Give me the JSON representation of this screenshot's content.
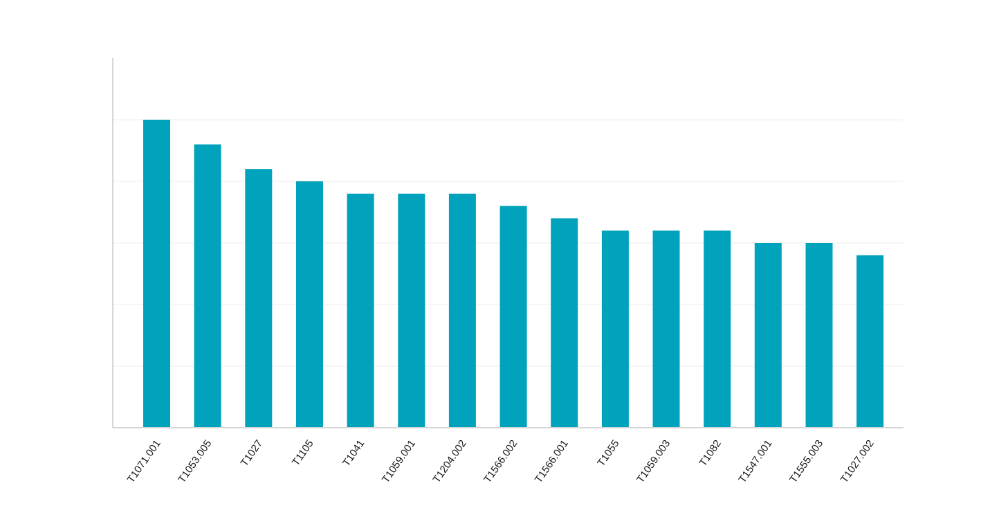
{
  "colors": {
    "bar": "#00a3bb",
    "grid": "#eeeeee",
    "axis": "#d6d6d6",
    "label": "#1a1a1a"
  },
  "chart_data": {
    "type": "bar",
    "title": "",
    "xlabel": "",
    "ylabel": "",
    "ylim": [
      0,
      30
    ],
    "grid": true,
    "y_ticks_shown": false,
    "categories": [
      "T1071.001",
      "T1053.005",
      "T1027",
      "T1105",
      "T1041",
      "T1059.001",
      "T1204.002",
      "T1566.002",
      "T1566.001",
      "T1055",
      "T1059.003",
      "T1082",
      "T1547.001",
      "T1555.003",
      "T1027.002"
    ],
    "values": [
      25,
      23,
      21,
      20,
      19,
      19,
      19,
      18,
      17,
      16,
      16,
      16,
      15,
      15,
      14
    ]
  }
}
